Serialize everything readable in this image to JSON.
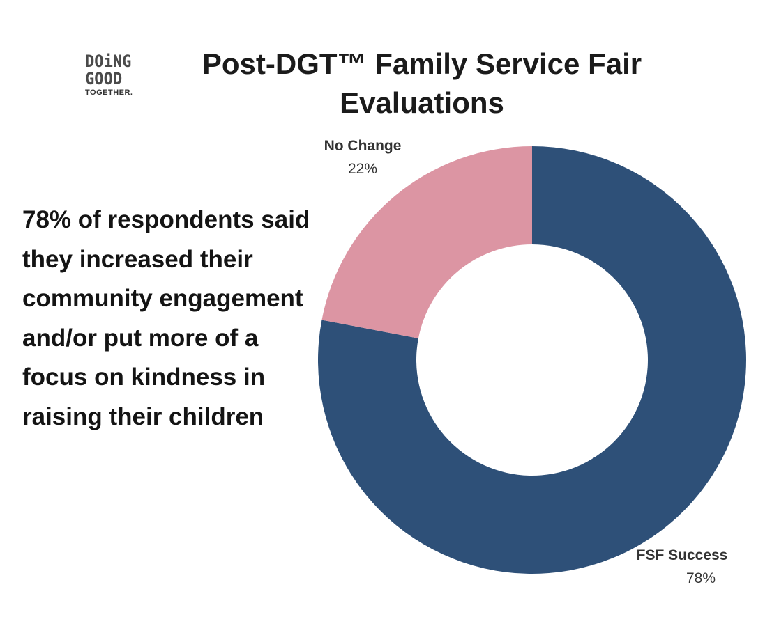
{
  "logo": {
    "line1": "DOiNG",
    "line2": "GOOD",
    "line3": "TOGETHER."
  },
  "title": "Post-DGT™ Family Service Fair Evaluations",
  "summary": "78% of respondents said they increased their community engagement and/or put more of a focus on kindness in raising their children",
  "colors": {
    "fsf_success": "#2e5078",
    "no_change": "#dc95a3"
  },
  "chart_data": {
    "type": "pie",
    "style": "donut",
    "title": "Post-DGT™ Family Service Fair Evaluations",
    "slices": [
      {
        "label": "FSF Success",
        "value": 78,
        "display": "78%",
        "color": "#2e5078"
      },
      {
        "label": "No Change",
        "value": 22,
        "display": "22%",
        "color": "#dc95a3"
      }
    ]
  }
}
